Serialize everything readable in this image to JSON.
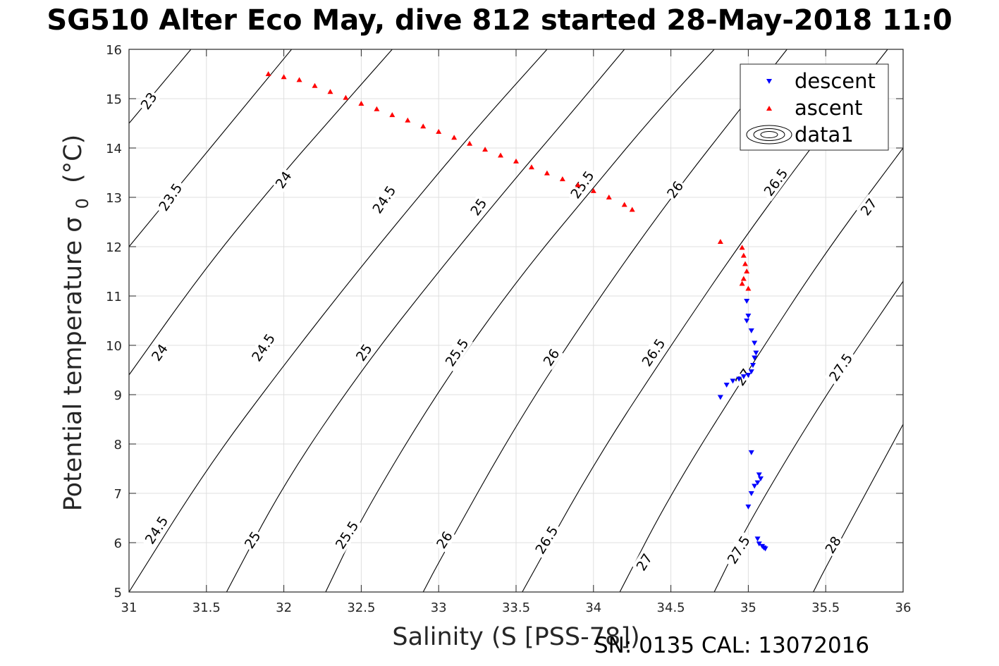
{
  "title": "SG510 Alter Eco May, dive 812 started 28-May-2018 11:0",
  "footer_note": "SN: 0135  CAL: 13072016",
  "colors": {
    "descent": "#0000ff",
    "ascent": "#ff0000",
    "grid": "#dfdfdf",
    "axis": "#262626",
    "contour": "#000000"
  },
  "chart_data": {
    "type": "scatter",
    "xlabel": "Salinity (S [PSS-78])",
    "ylabel": "Potential temperature σ",
    "ylabel_sub": "0",
    "ylabel_unit": "(°C)",
    "xlim": [
      31,
      36
    ],
    "ylim": [
      5,
      16
    ],
    "xticks": [
      31,
      31.5,
      32,
      32.5,
      33,
      33.5,
      34,
      34.5,
      35,
      35.5,
      36
    ],
    "xtick_labels": [
      "31",
      "31.5",
      "32",
      "32.5",
      "33",
      "33.5",
      "34",
      "34.5",
      "35",
      "35.5",
      "36"
    ],
    "yticks": [
      5,
      6,
      7,
      8,
      9,
      10,
      11,
      12,
      13,
      14,
      15,
      16
    ],
    "ytick_labels": [
      "5",
      "6",
      "7",
      "8",
      "9",
      "10",
      "11",
      "12",
      "13",
      "14",
      "15",
      "16"
    ],
    "grid": true,
    "legend_position": "top-right",
    "legend": [
      {
        "name": "descent",
        "marker": "down-triangle",
        "color": "#0000ff"
      },
      {
        "name": "ascent",
        "marker": "up-triangle",
        "color": "#ff0000"
      },
      {
        "name": "data1",
        "marker": "contour"
      }
    ],
    "contours": [
      {
        "level": "23",
        "points": [
          [
            31,
            14.5
          ],
          [
            31.4,
            16
          ]
        ]
      },
      {
        "level": "23.5",
        "points": [
          [
            31,
            12
          ],
          [
            32.05,
            16
          ]
        ]
      },
      {
        "level": "24",
        "points": [
          [
            31,
            9.4
          ],
          [
            31.5,
            11.6
          ],
          [
            32,
            13.5
          ],
          [
            32.25,
            14.4
          ],
          [
            32.7,
            16
          ]
        ]
      },
      {
        "level": "24.5",
        "points": [
          [
            31,
            5
          ],
          [
            31.5,
            7.5
          ],
          [
            32,
            9.6
          ],
          [
            32.5,
            11.6
          ],
          [
            33,
            13.5
          ],
          [
            33.3,
            14.6
          ],
          [
            33.7,
            16
          ]
        ]
      },
      {
        "level": "25",
        "points": [
          [
            31.63,
            5
          ],
          [
            32,
            7.2
          ],
          [
            32.5,
            9.5
          ],
          [
            33,
            11.5
          ],
          [
            33.5,
            13.4
          ],
          [
            33.8,
            14.5
          ],
          [
            34.2,
            16
          ]
        ]
      },
      {
        "level": "25.5",
        "points": [
          [
            32.27,
            5
          ],
          [
            32.5,
            6.5
          ],
          [
            33,
            9.1
          ],
          [
            33.5,
            11.3
          ],
          [
            34,
            13.2
          ],
          [
            34.4,
            14.7
          ],
          [
            34.78,
            16
          ]
        ]
      },
      {
        "level": "26",
        "points": [
          [
            32.9,
            5
          ],
          [
            33,
            5.6
          ],
          [
            33.5,
            8.4
          ],
          [
            34,
            10.8
          ],
          [
            34.5,
            13
          ],
          [
            35,
            15
          ],
          [
            35.25,
            16
          ]
        ]
      },
      {
        "level": "26.5",
        "points": [
          [
            33.54,
            5
          ],
          [
            34,
            7.6
          ],
          [
            34.5,
            10
          ],
          [
            35,
            12.3
          ],
          [
            35.5,
            14.4
          ],
          [
            35.9,
            16
          ]
        ]
      },
      {
        "level": "27",
        "points": [
          [
            34.17,
            5
          ],
          [
            34.5,
            7
          ],
          [
            35,
            9.5
          ],
          [
            35.5,
            11.9
          ],
          [
            36,
            14
          ]
        ]
      },
      {
        "level": "27.5",
        "points": [
          [
            34.78,
            5
          ],
          [
            35,
            6.4
          ],
          [
            35.5,
            9
          ],
          [
            36,
            11.3
          ]
        ]
      },
      {
        "level": "28",
        "points": [
          [
            35.42,
            5
          ],
          [
            35.5,
            5.5
          ],
          [
            36,
            8.4
          ]
        ]
      }
    ],
    "contour_labels": [
      {
        "text": "23",
        "x": 31.13,
        "y": 14.95,
        "angle": -55
      },
      {
        "text": "23.5",
        "x": 31.27,
        "y": 13.0,
        "angle": -56
      },
      {
        "text": "24",
        "x": 31.2,
        "y": 9.85,
        "angle": -55
      },
      {
        "text": "24",
        "x": 32.0,
        "y": 13.35,
        "angle": -56
      },
      {
        "text": "24.5",
        "x": 31.18,
        "y": 6.25,
        "angle": -57
      },
      {
        "text": "24.5",
        "x": 31.87,
        "y": 9.95,
        "angle": -56
      },
      {
        "text": "24.5",
        "x": 32.65,
        "y": 12.95,
        "angle": -56
      },
      {
        "text": "25",
        "x": 31.8,
        "y": 6.05,
        "angle": -57
      },
      {
        "text": "25",
        "x": 32.52,
        "y": 9.85,
        "angle": -56
      },
      {
        "text": "25",
        "x": 33.26,
        "y": 12.8,
        "angle": -55
      },
      {
        "text": "25.5",
        "x": 32.41,
        "y": 6.15,
        "angle": -57
      },
      {
        "text": "25.5",
        "x": 33.12,
        "y": 9.85,
        "angle": -56
      },
      {
        "text": "25.5",
        "x": 33.93,
        "y": 13.25,
        "angle": -55
      },
      {
        "text": "26",
        "x": 33.04,
        "y": 6.05,
        "angle": -57
      },
      {
        "text": "26",
        "x": 33.73,
        "y": 9.75,
        "angle": -56
      },
      {
        "text": "26",
        "x": 34.53,
        "y": 13.15,
        "angle": -54
      },
      {
        "text": "26.5",
        "x": 33.7,
        "y": 6.05,
        "angle": -58
      },
      {
        "text": "26.5",
        "x": 34.39,
        "y": 9.85,
        "angle": -56
      },
      {
        "text": "26.5",
        "x": 35.18,
        "y": 13.3,
        "angle": -54
      },
      {
        "text": "27",
        "x": 34.33,
        "y": 5.6,
        "angle": -58
      },
      {
        "text": "27",
        "x": 34.97,
        "y": 9.35,
        "angle": -56
      },
      {
        "text": "27",
        "x": 35.78,
        "y": 12.8,
        "angle": -53
      },
      {
        "text": "27.5",
        "x": 34.94,
        "y": 5.85,
        "angle": -58
      },
      {
        "text": "27.5",
        "x": 35.6,
        "y": 9.55,
        "angle": -56
      },
      {
        "text": "28",
        "x": 35.55,
        "y": 5.95,
        "angle": -58
      }
    ],
    "series": [
      {
        "name": "descent",
        "marker": "down-triangle",
        "color": "#0000ff",
        "points": [
          [
            34.82,
            8.95
          ],
          [
            34.86,
            9.2
          ],
          [
            34.9,
            9.28
          ],
          [
            34.94,
            9.32
          ],
          [
            34.97,
            9.37
          ],
          [
            35.0,
            9.4
          ],
          [
            35.02,
            9.47
          ],
          [
            35.03,
            9.6
          ],
          [
            35.04,
            9.75
          ],
          [
            35.05,
            9.85
          ],
          [
            35.04,
            10.05
          ],
          [
            35.02,
            10.3
          ],
          [
            34.99,
            10.5
          ],
          [
            35.0,
            10.6
          ],
          [
            34.99,
            10.9
          ],
          [
            35.02,
            7.83
          ],
          [
            35.07,
            7.38
          ],
          [
            35.08,
            7.3
          ],
          [
            35.06,
            7.22
          ],
          [
            35.04,
            7.15
          ],
          [
            35.02,
            7.0
          ],
          [
            35.0,
            6.73
          ],
          [
            35.06,
            6.08
          ],
          [
            35.07,
            5.98
          ],
          [
            35.09,
            5.93
          ],
          [
            35.1,
            5.9
          ],
          [
            35.11,
            5.88
          ]
        ]
      },
      {
        "name": "ascent",
        "marker": "up-triangle",
        "color": "#ff0000",
        "points": [
          [
            31.9,
            15.5
          ],
          [
            32.0,
            15.44
          ],
          [
            32.1,
            15.38
          ],
          [
            32.2,
            15.26
          ],
          [
            32.3,
            15.14
          ],
          [
            32.4,
            15.02
          ],
          [
            32.5,
            14.9
          ],
          [
            32.6,
            14.79
          ],
          [
            32.7,
            14.67
          ],
          [
            32.8,
            14.56
          ],
          [
            32.9,
            14.44
          ],
          [
            33.0,
            14.33
          ],
          [
            33.1,
            14.21
          ],
          [
            33.2,
            14.09
          ],
          [
            33.3,
            13.97
          ],
          [
            33.4,
            13.85
          ],
          [
            33.5,
            13.73
          ],
          [
            33.6,
            13.61
          ],
          [
            33.7,
            13.49
          ],
          [
            33.8,
            13.37
          ],
          [
            33.9,
            13.25
          ],
          [
            34.0,
            13.13
          ],
          [
            34.1,
            13.0
          ],
          [
            34.2,
            12.85
          ],
          [
            34.25,
            12.75
          ],
          [
            34.82,
            12.1
          ],
          [
            34.96,
            11.98
          ],
          [
            34.97,
            11.82
          ],
          [
            34.98,
            11.65
          ],
          [
            34.99,
            11.5
          ],
          [
            34.97,
            11.35
          ],
          [
            34.96,
            11.25
          ],
          [
            35.0,
            11.15
          ]
        ]
      }
    ]
  }
}
